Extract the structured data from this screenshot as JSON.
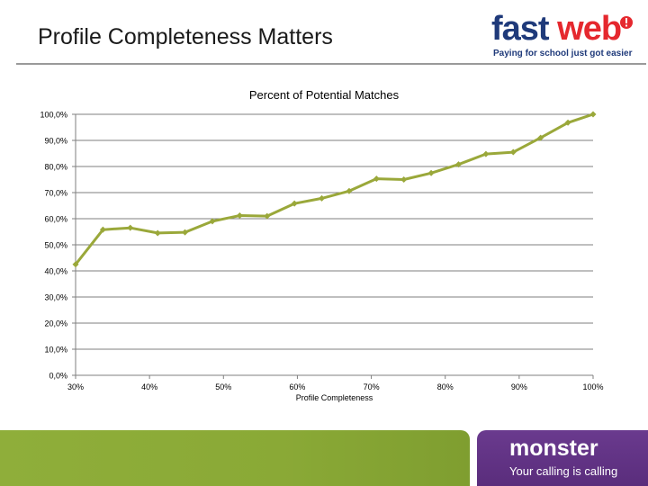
{
  "slide": {
    "title": "Profile Completeness Matters"
  },
  "brand": {
    "logo_fast": "fastweb",
    "logo_web": "web",
    "logo_text": "fastweb",
    "tagline": "Paying for school just got easier"
  },
  "footer": {
    "brand": "monster",
    "tagline": "Your calling is calling"
  },
  "colors": {
    "series": "#9aa83a",
    "grid": "#7f7f7f",
    "footer_green": "#8aa936",
    "footer_purple": "#5a2d7c"
  },
  "chart_data": {
    "type": "line",
    "title": "Percent of Potential Matches",
    "xlabel": "Profile Completeness",
    "ylabel": "",
    "xlim": [
      30,
      100
    ],
    "ylim": [
      0,
      100
    ],
    "grid": true,
    "x_ticks": [
      30,
      40,
      50,
      60,
      70,
      80,
      90,
      100
    ],
    "x_tick_labels": [
      "30%",
      "40%",
      "50%",
      "60%",
      "70%",
      "80%",
      "90%",
      "100%"
    ],
    "y_ticks": [
      0,
      10,
      20,
      30,
      40,
      50,
      60,
      70,
      80,
      90,
      100
    ],
    "y_tick_labels": [
      "0,0%",
      "10,0%",
      "20,0%",
      "30,0%",
      "40,0%",
      "50,0%",
      "60,0%",
      "70,0%",
      "80,0%",
      "90,0%",
      "100,0%"
    ],
    "series": [
      {
        "name": "Percent of Potential Matches",
        "x": [
          30,
          33.7,
          37.4,
          41.1,
          44.8,
          48.5,
          52.2,
          55.9,
          59.6,
          63.3,
          67,
          70.7,
          74.4,
          78.1,
          81.8,
          85.5,
          89.2,
          92.9,
          96.6,
          100
        ],
        "values": [
          42.5,
          55.8,
          56.5,
          54.5,
          54.8,
          59,
          61.2,
          61,
          65.8,
          67.8,
          70.6,
          75.3,
          75,
          77.5,
          80.8,
          84.8,
          85.5,
          91,
          96.8,
          100
        ]
      }
    ]
  }
}
